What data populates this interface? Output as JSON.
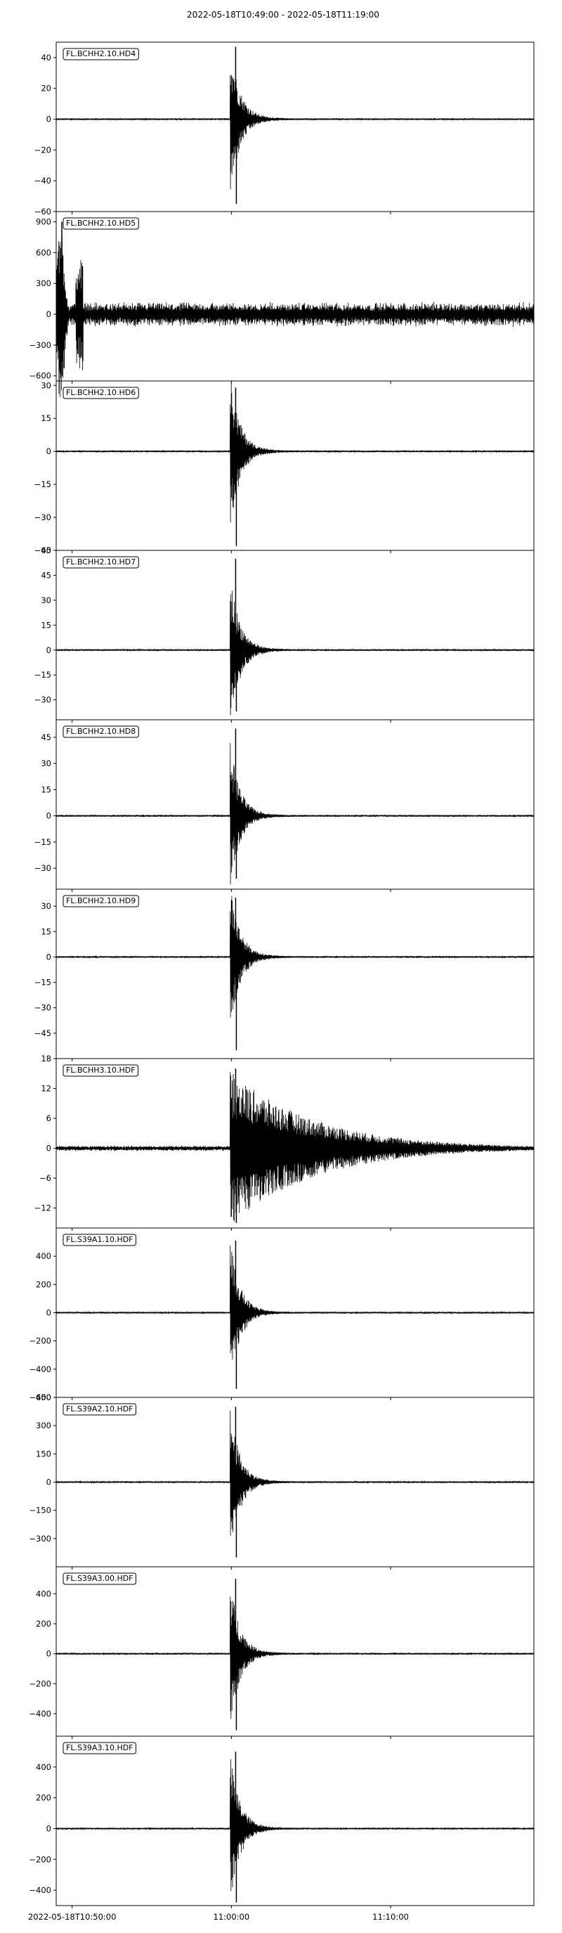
{
  "title": "2022-05-18T10:49:00  -  2022-05-18T11:19:00",
  "colors": {
    "trace": "#000000",
    "axes": "#000000",
    "background": "#ffffff",
    "label_box_edge": "#000000"
  },
  "chart_data": {
    "type": "line",
    "title": "2022-05-18T10:49:00  -  2022-05-18T11:19:00",
    "grid": false,
    "x_range": [
      "2022-05-18T10:49:00",
      "2022-05-18T11:19:00"
    ],
    "x_tick_labels": [
      {
        "t": "2022-05-18T10:50:00",
        "label": "2022-05-18T10:50:00"
      },
      {
        "t": "2022-05-18T11:00:00",
        "label": "11:00:00"
      },
      {
        "t": "2022-05-18T11:10:00",
        "label": "11:10:00"
      }
    ],
    "panels": [
      {
        "label": "FL.BCHH2.10.HD4",
        "ylim": [
          -60,
          50
        ],
        "yticks": [
          -60,
          -40,
          -20,
          0,
          20,
          40
        ],
        "event": {
          "onset": "2022-05-18T10:59:55",
          "peak_pos": 47,
          "peak_neg": -55
        }
      },
      {
        "label": "FL.BCHH2.10.HD5",
        "ylim": [
          -650,
          1000
        ],
        "yticks": [
          -600,
          -300,
          0,
          300,
          600,
          900
        ],
        "event": {
          "onset": "2022-05-18T10:49:00",
          "peak_pos": 900,
          "peak_neg": -600
        }
      },
      {
        "label": "FL.BCHH2.10.HD6",
        "ylim": [
          -45,
          32
        ],
        "yticks": [
          -45,
          -30,
          -15,
          0,
          15,
          30
        ],
        "event": {
          "onset": "2022-05-18T10:59:55",
          "peak_pos": 29,
          "peak_neg": -43
        }
      },
      {
        "label": "FL.BCHH2.10.HD7",
        "ylim": [
          -42,
          60
        ],
        "yticks": [
          -30,
          -15,
          0,
          15,
          30,
          45,
          60
        ],
        "event": {
          "onset": "2022-05-18T10:59:55",
          "peak_pos": 55,
          "peak_neg": -37
        }
      },
      {
        "label": "FL.BCHH2.10.HD8",
        "ylim": [
          -42,
          55
        ],
        "yticks": [
          -30,
          -15,
          0,
          15,
          30,
          45
        ],
        "event": {
          "onset": "2022-05-18T10:59:55",
          "peak_pos": 50,
          "peak_neg": -36
        }
      },
      {
        "label": "FL.BCHH2.10.HD9",
        "ylim": [
          -60,
          40
        ],
        "yticks": [
          -45,
          -30,
          -15,
          0,
          15,
          30
        ],
        "event": {
          "onset": "2022-05-18T10:59:55",
          "peak_pos": 35,
          "peak_neg": -55
        }
      },
      {
        "label": "FL.BCHH3.10.HDF",
        "ylim": [
          -16,
          18
        ],
        "yticks": [
          -12,
          -6,
          0,
          6,
          12,
          18
        ],
        "event": {
          "onset": "2022-05-18T10:59:55",
          "peak_pos": 16,
          "peak_neg": -15
        }
      },
      {
        "label": "FL.S39A1.10.HDF",
        "ylim": [
          -600,
          600
        ],
        "yticks": [
          -600,
          -400,
          -200,
          0,
          200,
          400
        ],
        "event": {
          "onset": "2022-05-18T10:59:55",
          "peak_pos": 510,
          "peak_neg": -540
        }
      },
      {
        "label": "FL.S39A2.10.HDF",
        "ylim": [
          -450,
          450
        ],
        "yticks": [
          -300,
          -150,
          0,
          150,
          300,
          450
        ],
        "event": {
          "onset": "2022-05-18T10:59:55",
          "peak_pos": 400,
          "peak_neg": -400
        }
      },
      {
        "label": "FL.S39A3.00.HDF",
        "ylim": [
          -550,
          580
        ],
        "yticks": [
          -400,
          -200,
          0,
          200,
          400
        ],
        "event": {
          "onset": "2022-05-18T10:59:55",
          "peak_pos": 500,
          "peak_neg": -510
        }
      },
      {
        "label": "FL.S39A3.10.HDF",
        "ylim": [
          -500,
          600
        ],
        "yticks": [
          -400,
          -200,
          0,
          200,
          400
        ],
        "event": {
          "onset": "2022-05-18T10:59:55",
          "peak_pos": 500,
          "peak_neg": -480
        }
      }
    ]
  }
}
